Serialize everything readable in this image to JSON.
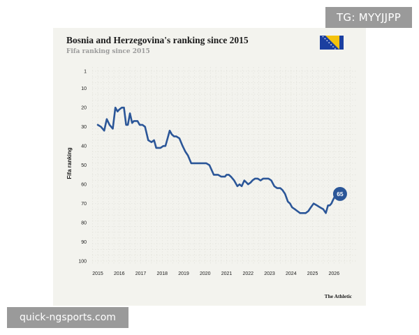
{
  "overlay": {
    "tg_badge": "TG: MYYJJPP",
    "source_badge": "quick-ngsports.com"
  },
  "header": {
    "title": "Bosnia and Herzegovina's ranking since 2015",
    "subtitle": "Fifa ranking since 2015"
  },
  "footer": {
    "publisher": "The Athletic"
  },
  "flag": {
    "name": "bosnia-and-herzegovina-flag",
    "colors": {
      "blue": "#1b3fa0",
      "yellow": "#f4c20d",
      "stars": "#ffffff"
    }
  },
  "colors": {
    "line": "#2b5698",
    "card_bg": "#f3f3ee",
    "grid": "#e1e1da",
    "text": "#1a1a1a"
  },
  "chart_data": {
    "type": "line",
    "title": "Bosnia and Herzegovina's ranking since 2015",
    "subtitle": "Fifa ranking since 2015",
    "ylabel": "Fifa ranking",
    "xlabel": "",
    "y_inverted": true,
    "ylim": [
      1,
      100
    ],
    "y_ticks": [
      1,
      10,
      20,
      30,
      40,
      50,
      60,
      70,
      80,
      90,
      100
    ],
    "x_ticks": [
      "2015",
      "2016",
      "2017",
      "2018",
      "2019",
      "2020",
      "2021",
      "2022",
      "2023",
      "2024",
      "2025",
      "2026"
    ],
    "xlim": [
      2015,
      2026.9
    ],
    "grid": true,
    "end_label": "65",
    "series": [
      {
        "x": [
          2015.0,
          2015.15,
          2015.3,
          2015.42,
          2015.55,
          2015.7,
          2015.82,
          2015.92,
          2016.0,
          2016.12,
          2016.22,
          2016.32,
          2016.4,
          2016.5,
          2016.6,
          2016.68,
          2016.76,
          2016.85,
          2016.95,
          2017.08,
          2017.2,
          2017.35,
          2017.5,
          2017.62,
          2017.72,
          2017.82,
          2017.92,
          2018.05,
          2018.15,
          2018.25,
          2018.35,
          2018.45,
          2018.55,
          2018.65,
          2018.8,
          2018.95,
          2019.08,
          2019.2,
          2019.35,
          2019.5,
          2019.62,
          2019.75,
          2019.85,
          2019.95,
          2020.05,
          2020.2,
          2020.4,
          2020.6,
          2020.75,
          2020.85,
          2020.92,
          2021.0,
          2021.1,
          2021.2,
          2021.35,
          2021.5,
          2021.6,
          2021.7,
          2021.82,
          2021.92,
          2022.0,
          2022.12,
          2022.2,
          2022.32,
          2022.45,
          2022.58,
          2022.7,
          2022.82,
          2022.95,
          2023.08,
          2023.22,
          2023.35,
          2023.5,
          2023.6,
          2023.72,
          2023.85,
          2023.95,
          2024.05,
          2024.18,
          2024.3,
          2024.42,
          2024.55,
          2024.68,
          2024.8,
          2024.92,
          2025.05,
          2025.2,
          2025.35,
          2025.5,
          2025.62,
          2025.72,
          2025.8,
          2025.88,
          2025.96,
          2026.05,
          2026.15
        ],
        "values": [
          29,
          30,
          32,
          26,
          29,
          31,
          20,
          22,
          21,
          20,
          20,
          29,
          29,
          23,
          28,
          27,
          27,
          27,
          29,
          29,
          30,
          37,
          38,
          37,
          41,
          41,
          41,
          40,
          40,
          36,
          32,
          34,
          35,
          35,
          36,
          40,
          43,
          45,
          49,
          49,
          49,
          49,
          49,
          49,
          49,
          50,
          55,
          55,
          56,
          56,
          56,
          55,
          55,
          56,
          58,
          61,
          60,
          61,
          58,
          59,
          60,
          59,
          58,
          57,
          57,
          58,
          57,
          57,
          57,
          58,
          61,
          62,
          62,
          63,
          65,
          69,
          70,
          72,
          73,
          74,
          75,
          75,
          75,
          74,
          72,
          70,
          71,
          72,
          73,
          75,
          71,
          71,
          70,
          68,
          66,
          65
        ]
      }
    ]
  }
}
